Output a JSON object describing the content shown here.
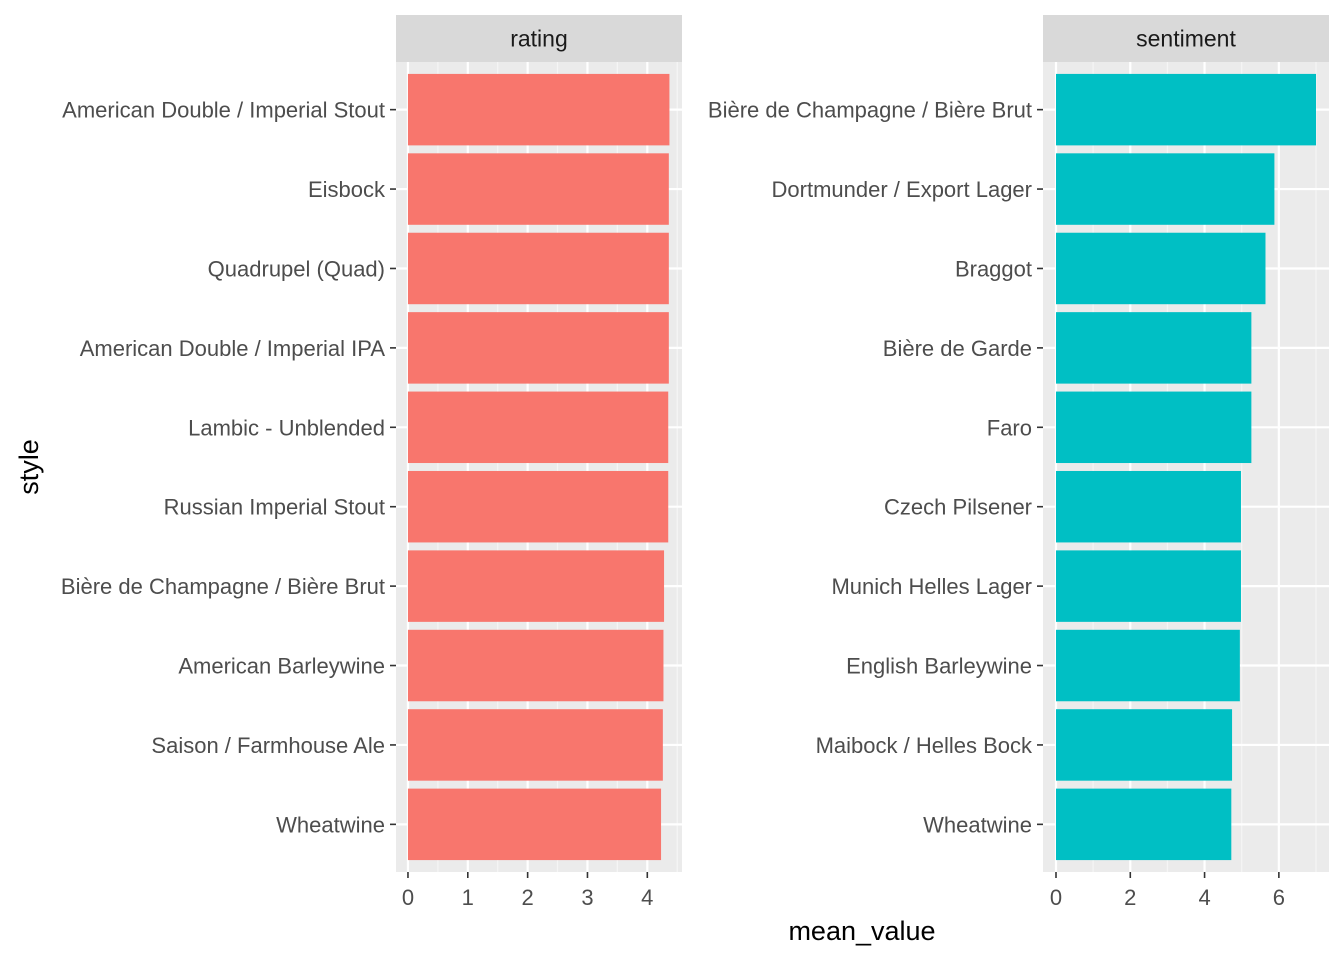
{
  "colors": {
    "panel_bg": "#EBEBEB",
    "strip_bg": "#D9D9D9",
    "grid_major": "#FFFFFF",
    "grid_minor": "#F5F5F5",
    "text": "#4D4D4D",
    "title_text": "#000000",
    "rating_fill": "#F8766D",
    "sentiment_fill": "#00BFC4"
  },
  "chart_data": {
    "type": "bar",
    "orientation": "horizontal",
    "xlabel": "mean_value",
    "ylabel": "style",
    "grid": true,
    "legend": "none",
    "facets": [
      {
        "strip": "rating",
        "fill_key": "rating_fill",
        "xlim": [
          -0.2,
          4.58
        ],
        "xticks": [
          0,
          1,
          2,
          3,
          4
        ],
        "categories": [
          "American Double / Imperial Stout",
          "Eisbock",
          "Quadrupel (Quad)",
          "American Double / Imperial IPA",
          "Lambic - Unblended",
          "Russian Imperial Stout",
          "Bière de Champagne / Bière Brut",
          "American Barleywine",
          "Saison / Farmhouse Ale",
          "Wheatwine"
        ],
        "values": [
          4.37,
          4.36,
          4.36,
          4.36,
          4.35,
          4.35,
          4.28,
          4.27,
          4.26,
          4.23
        ]
      },
      {
        "strip": "sentiment",
        "fill_key": "sentiment_fill",
        "xlim": [
          -0.35,
          7.35
        ],
        "xticks": [
          0,
          2,
          4,
          6
        ],
        "categories": [
          "Bière de Champagne / Bière Brut",
          "Dortmunder / Export Lager",
          "Braggot",
          "Bière de Garde",
          "Faro",
          "Czech Pilsener",
          "Munich Helles Lager",
          "English Barleywine",
          "Maibock / Helles Bock",
          "Wheatwine"
        ],
        "values": [
          7.0,
          5.88,
          5.64,
          5.26,
          5.26,
          4.98,
          4.98,
          4.95,
          4.74,
          4.72
        ]
      }
    ]
  }
}
